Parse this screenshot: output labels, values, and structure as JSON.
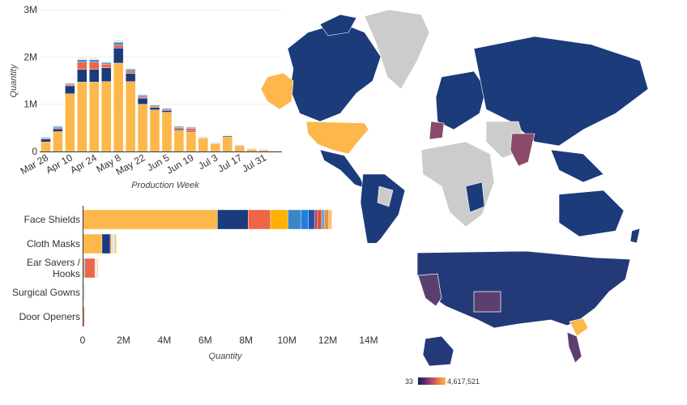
{
  "chart_data": [
    {
      "type": "bar",
      "stacked": true,
      "xlabel": "Production Week",
      "ylabel": "Quantity",
      "ylim": [
        0,
        3000000
      ],
      "yticks": [
        "0",
        "1M",
        "2M",
        "3M"
      ],
      "xticks": [
        "Mar 28",
        "Apr 10",
        "Apr 24",
        "May 8",
        "May 22",
        "Jun 5",
        "Jun 19",
        "Jul 3",
        "Jul 17",
        "Jul 31"
      ],
      "categories": [
        "Mar 28",
        "Apr 3",
        "Apr 10",
        "Apr 17",
        "Apr 24",
        "May 1",
        "May 8",
        "May 15",
        "May 22",
        "May 29",
        "Jun 5",
        "Jun 12",
        "Jun 19",
        "Jun 26",
        "Jul 3",
        "Jul 10",
        "Jul 17",
        "Jul 24",
        "Jul 31",
        "Aug 7"
      ],
      "series": [
        {
          "color": "#fdb74a",
          "values": [
            200000,
            420000,
            1220000,
            1470000,
            1470000,
            1480000,
            1870000,
            1480000,
            1000000,
            880000,
            830000,
            450000,
            410000,
            280000,
            160000,
            310000,
            120000,
            50000,
            30000,
            10000
          ]
        },
        {
          "color": "#1b3b7a",
          "values": [
            60000,
            60000,
            170000,
            270000,
            270000,
            290000,
            320000,
            170000,
            130000,
            50000,
            40000,
            30000,
            20000,
            10000,
            10000,
            20000,
            10000,
            10000,
            10000,
            5000
          ]
        },
        {
          "color": "#ef6548",
          "values": [
            20000,
            20000,
            30000,
            150000,
            150000,
            80000,
            60000,
            50000,
            30000,
            30000,
            20000,
            30000,
            60000,
            10000,
            10000,
            10000,
            10000,
            5000,
            5000,
            3000
          ]
        },
        {
          "color": "#3d86c6",
          "values": [
            20000,
            30000,
            20000,
            50000,
            50000,
            30000,
            60000,
            40000,
            30000,
            20000,
            20000,
            20000,
            20000,
            10000,
            10000,
            10000,
            5000,
            5000,
            5000,
            2000
          ]
        },
        {
          "color": "#e8e8e8",
          "values": [
            10000,
            20000,
            20000,
            40000,
            40000,
            30000,
            50000,
            30000,
            30000,
            20000,
            20000,
            20000,
            20000,
            10000,
            10000,
            10000,
            5000,
            5000,
            5000,
            2000
          ]
        }
      ]
    },
    {
      "type": "bar",
      "orientation": "horizontal",
      "stacked": true,
      "xlabel": "Quantity",
      "xlim": [
        0,
        14000000
      ],
      "xticks": [
        "0",
        "2M",
        "4M",
        "6M",
        "8M",
        "10M",
        "12M",
        "14M"
      ],
      "categories": [
        [
          "Face Shields"
        ],
        [
          "Cloth Masks"
        ],
        [
          "Ear Savers /",
          "Hooks"
        ],
        [
          "Surgical Gowns"
        ],
        [
          "Door Openers"
        ]
      ],
      "series": [
        {
          "color": "#fdb74a",
          "values": [
            6600000,
            950000,
            100000,
            20000,
            30000
          ]
        },
        {
          "color": "#1b3b7a",
          "values": [
            1500000,
            400000,
            50000,
            10000,
            10000
          ]
        },
        {
          "color": "#ef6548",
          "values": [
            1100000,
            50000,
            450000,
            30000,
            50000
          ]
        },
        {
          "color": "#ffb000",
          "values": [
            850000,
            30000,
            20000,
            5000,
            5000
          ]
        },
        {
          "color": "#3d86c6",
          "values": [
            650000,
            30000,
            20000,
            5000,
            5000
          ]
        },
        {
          "color": "#1f7ee0",
          "values": [
            350000,
            20000,
            10000,
            5000,
            5000
          ]
        },
        {
          "color": "#2451a6",
          "values": [
            300000,
            20000,
            10000,
            5000,
            5000
          ]
        },
        {
          "color": "#a04b6e",
          "values": [
            150000,
            20000,
            10000,
            5000,
            5000
          ]
        },
        {
          "color": "#e64a2e",
          "values": [
            200000,
            10000,
            10000,
            5000,
            5000
          ]
        },
        {
          "color": "#5fa3e0",
          "values": [
            150000,
            10000,
            10000,
            5000,
            5000
          ]
        },
        {
          "color": "#f48c3a",
          "values": [
            200000,
            10000,
            10000,
            5000,
            5000
          ]
        },
        {
          "color": "#f5c66b",
          "values": [
            150000,
            100000,
            50000,
            5000,
            5000
          ]
        }
      ]
    },
    {
      "type": "map",
      "region": "world",
      "colors": {
        "low": "#1b3b7a",
        "mid": "#8c4a6a",
        "high": "#fdb74a",
        "no_data": "#cccccc",
        "border": "#ffffff"
      }
    },
    {
      "type": "map",
      "region": "united-states",
      "colors": {
        "low": "#243a78",
        "mid": "#5a3f70",
        "high": "#fdb74a",
        "border": "#ffffff"
      },
      "legend": {
        "min": "33",
        "max": "4,617,521",
        "gradient": [
          "#1a1a4e",
          "#5a2f6e",
          "#b8486a",
          "#f07a45",
          "#fdb74a"
        ]
      }
    }
  ]
}
